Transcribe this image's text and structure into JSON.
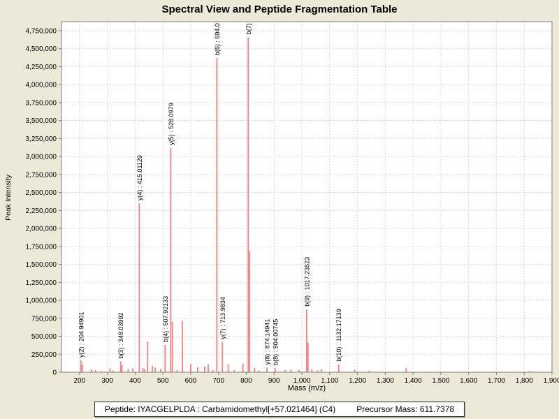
{
  "window": {
    "title": "Spectral View and Peptide Fragmentation Table"
  },
  "status_bar": {
    "peptide_label": "Peptide: IYACGELPLDA : Carbamidomethyl[+57.021464] (C4)",
    "precursor_label": "Precursor Mass: 611.7378"
  },
  "colors": {
    "background": "#ece9d8",
    "plot_background": "#ffffff",
    "grid": "#d8d8d8",
    "axis": "#7f7f7f",
    "peak": "#ee8484",
    "text": "#000000"
  },
  "chart_data": {
    "type": "bar",
    "title": "Spectral View and Peptide Fragmentation Table",
    "xlabel": "Mass (m/z)",
    "ylabel": "Peak Intensity",
    "xlim": [
      135,
      1900
    ],
    "ylim": [
      0,
      4876000
    ],
    "grid": "dashed",
    "x_ticks": [
      200,
      300,
      400,
      500,
      600,
      700,
      800,
      900,
      1000,
      1100,
      1200,
      1300,
      1400,
      1500,
      1600,
      1700,
      1800,
      1900
    ],
    "y_ticks": [
      0,
      250000,
      500000,
      750000,
      1000000,
      1250000,
      1500000,
      1750000,
      2000000,
      2250000,
      2500000,
      2750000,
      3000000,
      3250000,
      3500000,
      3750000,
      4000000,
      4250000,
      4500000,
      4750000
    ],
    "peaks": [
      {
        "mz": 204.95,
        "intensity": 165000,
        "label": "y(2) : 204.94901"
      },
      {
        "mz": 210,
        "intensity": 105000
      },
      {
        "mz": 243,
        "intensity": 40000
      },
      {
        "mz": 257,
        "intensity": 30000
      },
      {
        "mz": 278,
        "intensity": 20000
      },
      {
        "mz": 310,
        "intensity": 55000
      },
      {
        "mz": 320,
        "intensity": 25000
      },
      {
        "mz": 348.04,
        "intensity": 150000,
        "label": "b(3) : 348.03992"
      },
      {
        "mz": 352.5,
        "intensity": 100000
      },
      {
        "mz": 375,
        "intensity": 45000
      },
      {
        "mz": 392,
        "intensity": 55000
      },
      {
        "mz": 415.01,
        "intensity": 2350000,
        "label": "y(4) : 415.01129"
      },
      {
        "mz": 428,
        "intensity": 60000
      },
      {
        "mz": 434,
        "intensity": 45000
      },
      {
        "mz": 445,
        "intensity": 425000
      },
      {
        "mz": 462,
        "intensity": 90000
      },
      {
        "mz": 472,
        "intensity": 65000
      },
      {
        "mz": 492,
        "intensity": 50000
      },
      {
        "mz": 507.92,
        "intensity": 380000,
        "label": "b(4) : 507.92133"
      },
      {
        "mz": 528.1,
        "intensity": 3120000,
        "label": "y(5) : 528.0979"
      },
      {
        "mz": 534,
        "intensity": 700000
      },
      {
        "mz": 551,
        "intensity": 30000
      },
      {
        "mz": 570,
        "intensity": 715000
      },
      {
        "mz": 600,
        "intensity": 115000
      },
      {
        "mz": 625,
        "intensity": 70000
      },
      {
        "mz": 650,
        "intensity": 80000
      },
      {
        "mz": 663,
        "intensity": 110000
      },
      {
        "mz": 680,
        "intensity": 30000
      },
      {
        "mz": 694.0,
        "intensity": 4370000,
        "label": "b(6) : 694.0"
      },
      {
        "mz": 713.98,
        "intensity": 420000,
        "label": "y(7) : 713.9834"
      },
      {
        "mz": 735,
        "intensity": 105000
      },
      {
        "mz": 757,
        "intensity": 30000
      },
      {
        "mz": 788,
        "intensity": 120000
      },
      {
        "mz": 807,
        "intensity": 4660000,
        "label": "b(7) :"
      },
      {
        "mz": 812,
        "intensity": 1680000
      },
      {
        "mz": 830,
        "intensity": 60000
      },
      {
        "mz": 846,
        "intensity": 25000
      },
      {
        "mz": 874.15,
        "intensity": 65000,
        "label": "y(8) : 874.14941"
      },
      {
        "mz": 904.01,
        "intensity": 60000,
        "label": "b(8) : 904.00745"
      },
      {
        "mz": 940,
        "intensity": 30000
      },
      {
        "mz": 960,
        "intensity": 35000
      },
      {
        "mz": 990,
        "intensity": 30000
      },
      {
        "mz": 1017.24,
        "intensity": 875000,
        "label": "b(9) : 1017.23523"
      },
      {
        "mz": 1022,
        "intensity": 410000
      },
      {
        "mz": 1036,
        "intensity": 45000
      },
      {
        "mz": 1056,
        "intensity": 25000
      },
      {
        "mz": 1070,
        "intensity": 40000
      },
      {
        "mz": 1132.17,
        "intensity": 110000,
        "label": "b(10) : 1132.17139"
      },
      {
        "mz": 1190,
        "intensity": 35000
      },
      {
        "mz": 1242,
        "intensity": 20000
      },
      {
        "mz": 1375,
        "intensity": 55000
      },
      {
        "mz": 1820,
        "intensity": 20000
      }
    ]
  }
}
